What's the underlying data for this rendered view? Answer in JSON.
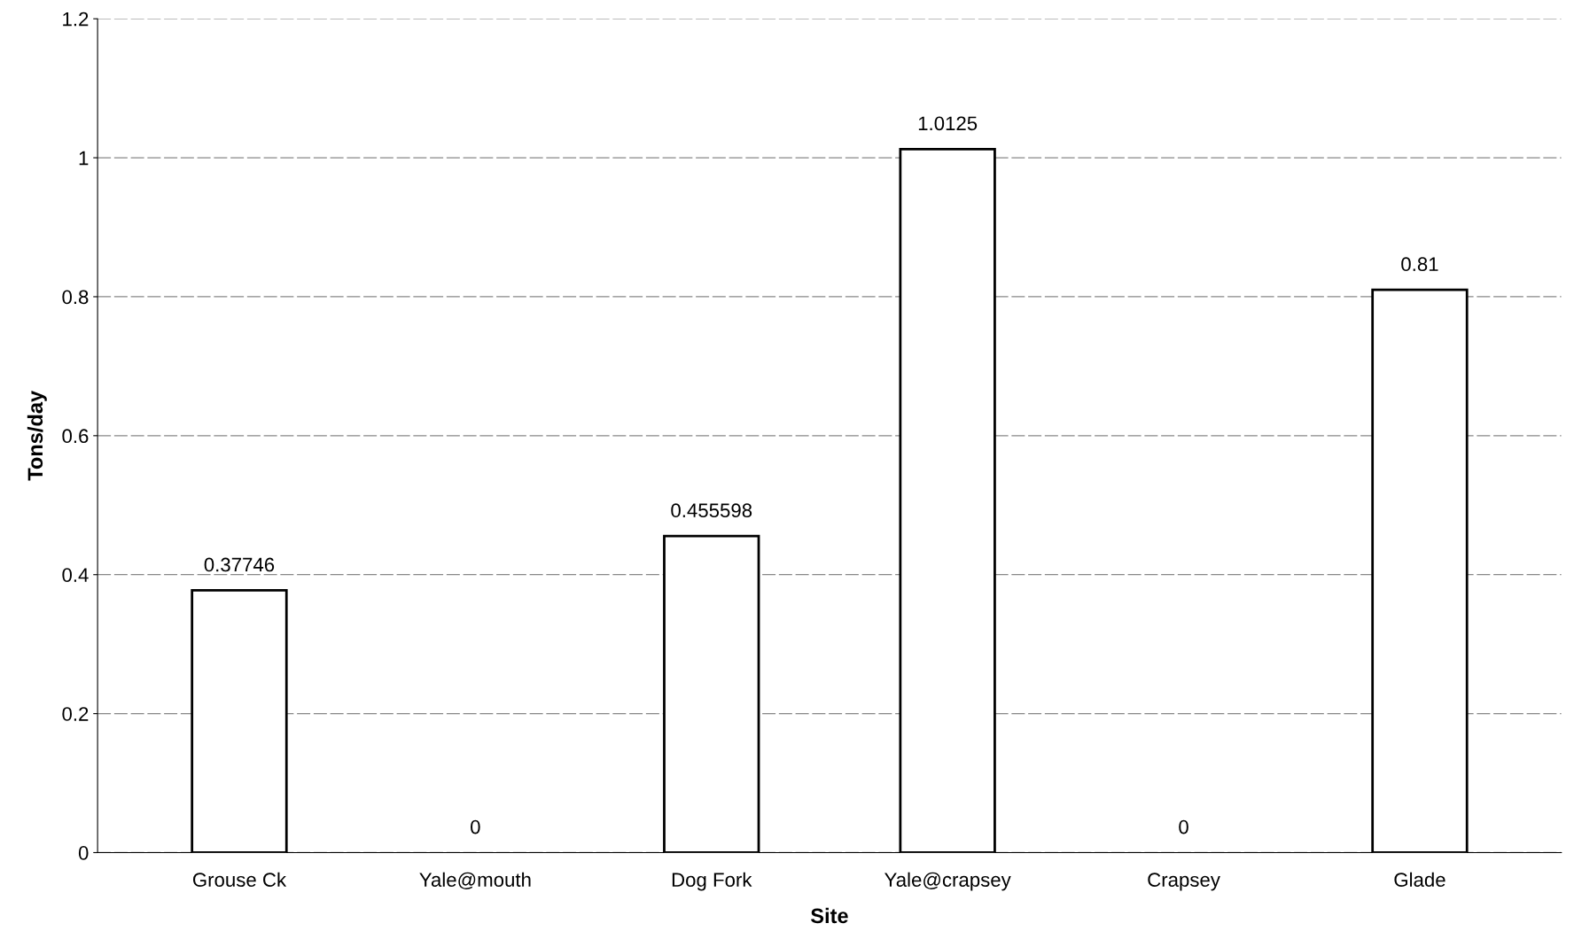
{
  "chart_data": {
    "type": "bar",
    "xlabel": "Site",
    "ylabel": "Tons/day",
    "categories": [
      "Grouse Ck",
      "Yale@mouth",
      "Dog Fork",
      "Yale@crapsey",
      "Crapsey",
      "Glade"
    ],
    "values": [
      0.37746,
      0,
      0.455598,
      1.0125,
      0,
      0.81
    ],
    "color": "#ffffff",
    "ylim": [
      0,
      1.2
    ],
    "yticks": [
      0,
      0.2,
      0.4,
      0.6,
      0.8,
      1,
      1.2
    ],
    "grid": "y",
    "data_labels": true
  }
}
